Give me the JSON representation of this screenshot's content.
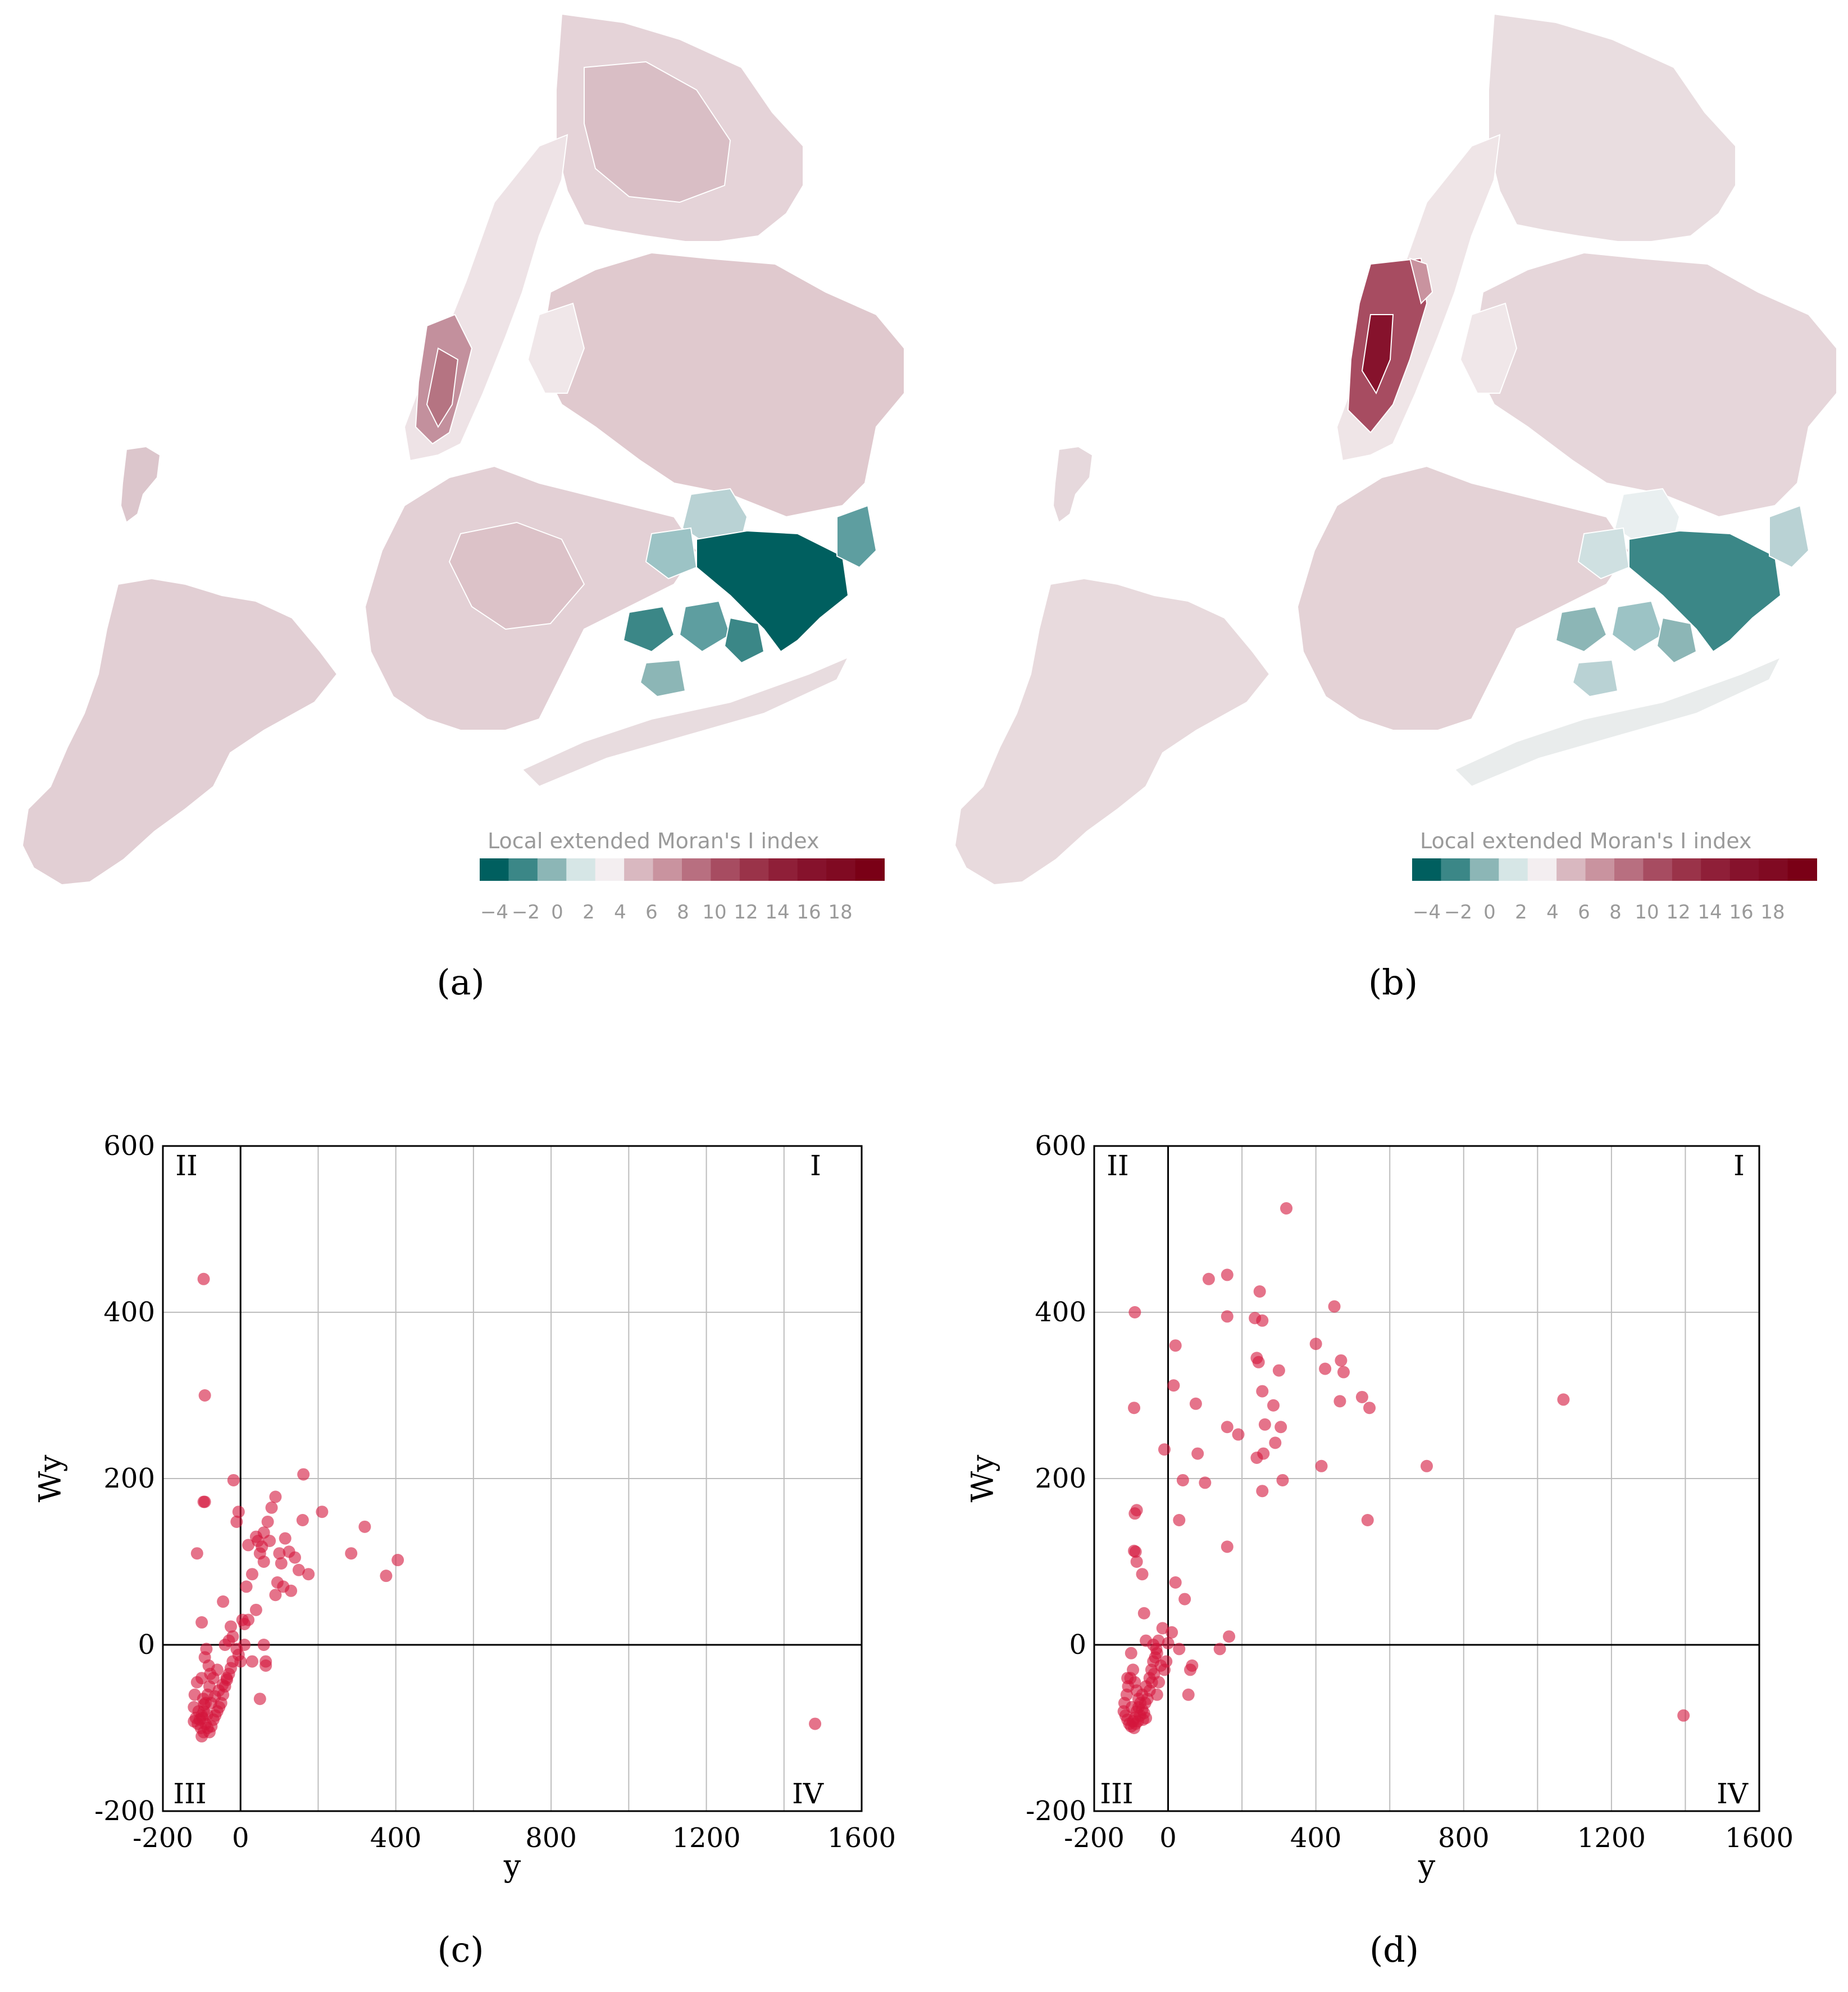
{
  "figure": {
    "subfigure_labels": [
      "(a)",
      "(b)",
      "(c)",
      "(d)"
    ],
    "colors": {
      "negative": "#005f5f",
      "positive": "#7a0016",
      "neutral": "#f3eef0",
      "base_map": "#e6d7db",
      "point": "#d4163c"
    }
  },
  "maps": [
    {
      "id": "a",
      "legend": {
        "title": "Local extended Moran's I index",
        "ticks": [
          "−4",
          "−2",
          "0",
          "2",
          "4",
          "6",
          "8",
          "10",
          "12",
          "14",
          "16",
          "18"
        ],
        "swatches": [
          "#005f5f",
          "#3b8787",
          "#8cb6b6",
          "#d6e6e6",
          "#f3eef0",
          "#d9b8c0",
          "#c9939f",
          "#b86f80",
          "#a74c61",
          "#9a3349",
          "#8f1f38",
          "#86122c",
          "#800a22",
          "#7a0016"
        ]
      }
    },
    {
      "id": "b",
      "legend": {
        "title": "Local extended Moran's I index",
        "ticks": [
          "−4",
          "−2",
          "0",
          "2",
          "4",
          "6",
          "8",
          "10",
          "12",
          "14",
          "16",
          "18"
        ],
        "swatches": [
          "#005f5f",
          "#3b8787",
          "#8cb6b6",
          "#d6e6e6",
          "#f3eef0",
          "#d9b8c0",
          "#c9939f",
          "#b86f80",
          "#a74c61",
          "#9a3349",
          "#8f1f38",
          "#86122c",
          "#800a22",
          "#7a0016"
        ]
      }
    }
  ],
  "chart_data": [
    {
      "id": "c",
      "type": "scatter",
      "xlabel": "y",
      "ylabel": "Wy",
      "xlim": [
        -200,
        1600
      ],
      "ylim": [
        -200,
        600
      ],
      "xticks": [
        "-200",
        "0",
        "400",
        "800",
        "1200",
        "1600"
      ],
      "yticks": [
        "-200",
        "0",
        "200",
        "400",
        "600"
      ],
      "xgrid": [
        200,
        400,
        600,
        800,
        1000,
        1200,
        1400
      ],
      "ygrid": [
        200,
        400
      ],
      "quadrant_labels": [
        "I",
        "II",
        "III",
        "IV"
      ],
      "points": [
        [
          -95,
          440
        ],
        [
          -92,
          300
        ],
        [
          -95,
          172
        ],
        [
          -92,
          172
        ],
        [
          -112,
          110
        ],
        [
          -100,
          27
        ],
        [
          -18,
          198
        ],
        [
          -5,
          160
        ],
        [
          -10,
          148
        ],
        [
          20,
          120
        ],
        [
          40,
          130
        ],
        [
          60,
          135
        ],
        [
          50,
          110
        ],
        [
          55,
          118
        ],
        [
          70,
          148
        ],
        [
          90,
          178
        ],
        [
          80,
          165
        ],
        [
          75,
          125
        ],
        [
          100,
          110
        ],
        [
          105,
          98
        ],
        [
          115,
          128
        ],
        [
          125,
          112
        ],
        [
          140,
          105
        ],
        [
          160,
          150
        ],
        [
          162,
          205
        ],
        [
          175,
          85
        ],
        [
          210,
          160
        ],
        [
          150,
          90
        ],
        [
          130,
          65
        ],
        [
          110,
          70
        ],
        [
          90,
          60
        ],
        [
          95,
          75
        ],
        [
          60,
          100
        ],
        [
          45,
          125
        ],
        [
          30,
          85
        ],
        [
          15,
          70
        ],
        [
          10,
          25
        ],
        [
          5,
          30
        ],
        [
          -20,
          10
        ],
        [
          -30,
          5
        ],
        [
          -40,
          0
        ],
        [
          -45,
          52
        ],
        [
          -25,
          22
        ],
        [
          -10,
          -5
        ],
        [
          0,
          -20
        ],
        [
          30,
          -20
        ],
        [
          65,
          -20
        ],
        [
          50,
          -65
        ],
        [
          65,
          -25
        ],
        [
          60,
          0
        ],
        [
          40,
          42
        ],
        [
          20,
          30
        ],
        [
          10,
          0
        ],
        [
          -5,
          -12
        ],
        [
          -60,
          -30
        ],
        [
          -70,
          -40
        ],
        [
          -80,
          -50
        ],
        [
          -85,
          -60
        ],
        [
          -90,
          -70
        ],
        [
          -95,
          -80
        ],
        [
          -100,
          -85
        ],
        [
          -105,
          -90
        ],
        [
          -110,
          -95
        ],
        [
          -115,
          -88
        ],
        [
          -120,
          -92
        ],
        [
          -90,
          -95
        ],
        [
          -85,
          -100
        ],
        [
          -80,
          -105
        ],
        [
          -75,
          -98
        ],
        [
          -70,
          -90
        ],
        [
          -65,
          -85
        ],
        [
          -60,
          -80
        ],
        [
          -55,
          -75
        ],
        [
          -50,
          -70
        ],
        [
          -45,
          -60
        ],
        [
          -40,
          -50
        ],
        [
          -35,
          -42
        ],
        [
          -30,
          -35
        ],
        [
          -25,
          -28
        ],
        [
          -20,
          -20
        ],
        [
          -100,
          -110
        ],
        [
          -95,
          -105
        ],
        [
          -92,
          -15
        ],
        [
          -88,
          -5
        ],
        [
          -82,
          -25
        ],
        [
          -78,
          -35
        ],
        [
          -120,
          -75
        ],
        [
          -118,
          -60
        ],
        [
          -112,
          -45
        ],
        [
          -100,
          -40
        ],
        [
          -96,
          -65
        ],
        [
          -94,
          -72
        ],
        [
          -98,
          -88
        ],
        [
          -102,
          -100
        ],
        [
          -108,
          -80
        ],
        [
          -86,
          -84
        ],
        [
          -76,
          -70
        ],
        [
          -66,
          -62
        ],
        [
          -56,
          -55
        ],
        [
          -46,
          -48
        ],
        [
          -36,
          -40
        ],
        [
          285,
          110
        ],
        [
          320,
          142
        ],
        [
          375,
          83
        ],
        [
          405,
          102
        ],
        [
          1480,
          -95
        ]
      ]
    },
    {
      "id": "d",
      "type": "scatter",
      "xlabel": "y",
      "ylabel": "Wy",
      "xlim": [
        -200,
        1600
      ],
      "ylim": [
        -200,
        600
      ],
      "xticks": [
        "-200",
        "0",
        "400",
        "800",
        "1200",
        "1600"
      ],
      "yticks": [
        "-200",
        "0",
        "200",
        "400",
        "600"
      ],
      "xgrid": [
        200,
        400,
        600,
        800,
        1000,
        1200,
        1400
      ],
      "ygrid": [
        200,
        400
      ],
      "quadrant_labels": [
        "I",
        "II",
        "III",
        "IV"
      ],
      "points": [
        [
          -90,
          400
        ],
        [
          -92,
          285
        ],
        [
          -90,
          158
        ],
        [
          -85,
          162
        ],
        [
          -92,
          113
        ],
        [
          -88,
          112
        ],
        [
          -85,
          100
        ],
        [
          -70,
          85
        ],
        [
          -65,
          38
        ],
        [
          -60,
          5
        ],
        [
          -40,
          0
        ],
        [
          -15,
          20
        ],
        [
          -10,
          235
        ],
        [
          15,
          312
        ],
        [
          20,
          360
        ],
        [
          30,
          150
        ],
        [
          40,
          198
        ],
        [
          45,
          55
        ],
        [
          20,
          75
        ],
        [
          10,
          15
        ],
        [
          0,
          2
        ],
        [
          30,
          -5
        ],
        [
          60,
          -30
        ],
        [
          65,
          -25
        ],
        [
          55,
          -60
        ],
        [
          75,
          290
        ],
        [
          80,
          230
        ],
        [
          100,
          195
        ],
        [
          110,
          440
        ],
        [
          160,
          445
        ],
        [
          160,
          395
        ],
        [
          160,
          262
        ],
        [
          160,
          118
        ],
        [
          165,
          10
        ],
        [
          140,
          -5
        ],
        [
          190,
          253
        ],
        [
          235,
          393
        ],
        [
          240,
          345
        ],
        [
          245,
          340
        ],
        [
          248,
          425
        ],
        [
          255,
          390
        ],
        [
          255,
          305
        ],
        [
          258,
          230
        ],
        [
          262,
          265
        ],
        [
          255,
          185
        ],
        [
          240,
          225
        ],
        [
          285,
          288
        ],
        [
          290,
          243
        ],
        [
          300,
          330
        ],
        [
          305,
          262
        ],
        [
          310,
          198
        ],
        [
          320,
          525
        ],
        [
          400,
          362
        ],
        [
          415,
          215
        ],
        [
          425,
          332
        ],
        [
          450,
          407
        ],
        [
          465,
          293
        ],
        [
          468,
          342
        ],
        [
          475,
          328
        ],
        [
          525,
          298
        ],
        [
          540,
          150
        ],
        [
          545,
          285
        ],
        [
          700,
          215
        ],
        [
          1070,
          295
        ],
        [
          1395,
          -85
        ],
        [
          -100,
          -10
        ],
        [
          -95,
          -30
        ],
        [
          -90,
          -45
        ],
        [
          -85,
          -55
        ],
        [
          -80,
          -65
        ],
        [
          -75,
          -70
        ],
        [
          -70,
          -78
        ],
        [
          -65,
          -82
        ],
        [
          -60,
          -88
        ],
        [
          -110,
          -90
        ],
        [
          -115,
          -85
        ],
        [
          -105,
          -95
        ],
        [
          -100,
          -98
        ],
        [
          -95,
          -92
        ],
        [
          -90,
          -88
        ],
        [
          -85,
          -80
        ],
        [
          -80,
          -75
        ],
        [
          -70,
          -60
        ],
        [
          -60,
          -50
        ],
        [
          -50,
          -40
        ],
        [
          -45,
          -30
        ],
        [
          -40,
          -20
        ],
        [
          -35,
          -15
        ],
        [
          -30,
          -10
        ],
        [
          -20,
          -25
        ],
        [
          -25,
          -45
        ],
        [
          -30,
          -60
        ],
        [
          -10,
          -30
        ],
        [
          -5,
          -20
        ],
        [
          -120,
          -80
        ],
        [
          -118,
          -70
        ],
        [
          -112,
          -60
        ],
        [
          -108,
          -50
        ],
        [
          -102,
          -40
        ],
        [
          -98,
          -75
        ],
        [
          -92,
          -100
        ],
        [
          -88,
          -95
        ],
        [
          -82,
          -92
        ],
        [
          -76,
          -85
        ],
        [
          -68,
          -90
        ],
        [
          -62,
          -70
        ],
        [
          -56,
          -65
        ],
        [
          -50,
          -55
        ],
        [
          -44,
          -45
        ],
        [
          -38,
          -35
        ],
        [
          -32,
          -5
        ],
        [
          -26,
          5
        ],
        [
          -110,
          -40
        ]
      ]
    }
  ]
}
